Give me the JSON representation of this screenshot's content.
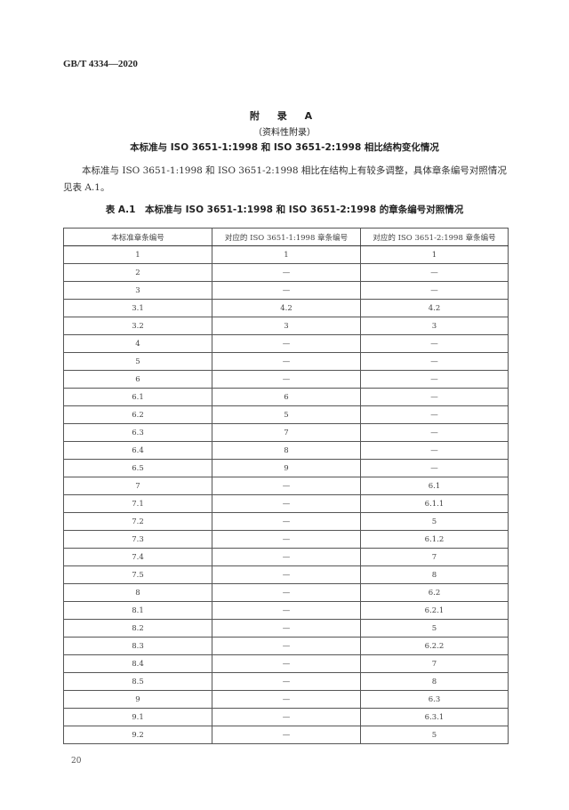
{
  "header": {
    "standard_number": "GB/T 4334—2020"
  },
  "appendix": {
    "title": "附 录 A",
    "subtitle": "（资料性附录）",
    "heading": "本标准与 ISO 3651-1:1998 和 ISO 3651-2:1998 相比结构变化情况"
  },
  "paragraph": "本标准与 ISO 3651-1:1998 和 ISO 3651-2:1998 相比在结构上有较多调整，具体章条编号对照情况见表 A.1。",
  "table": {
    "caption": "表 A.1　本标准与 ISO 3651-1:1998 和 ISO 3651-2:1998 的章条编号对照情况",
    "headers": [
      "本标准章条编号",
      "对应的 ISO 3651-1:1998 章条编号",
      "对应的 ISO 3651-2:1998 章条编号"
    ],
    "rows": [
      [
        "1",
        "1",
        "1"
      ],
      [
        "2",
        "—",
        "—"
      ],
      [
        "3",
        "—",
        "—"
      ],
      [
        "3.1",
        "4.2",
        "4.2"
      ],
      [
        "3.2",
        "3",
        "3"
      ],
      [
        "4",
        "—",
        "—"
      ],
      [
        "5",
        "—",
        "—"
      ],
      [
        "6",
        "—",
        "—"
      ],
      [
        "6.1",
        "6",
        "—"
      ],
      [
        "6.2",
        "5",
        "—"
      ],
      [
        "6.3",
        "7",
        "—"
      ],
      [
        "6.4",
        "8",
        "—"
      ],
      [
        "6.5",
        "9",
        "—"
      ],
      [
        "7",
        "—",
        "6.1"
      ],
      [
        "7.1",
        "—",
        "6.1.1"
      ],
      [
        "7.2",
        "—",
        "5"
      ],
      [
        "7.3",
        "—",
        "6.1.2"
      ],
      [
        "7.4",
        "—",
        "7"
      ],
      [
        "7.5",
        "—",
        "8"
      ],
      [
        "8",
        "—",
        "6.2"
      ],
      [
        "8.1",
        "—",
        "6.2.1"
      ],
      [
        "8.2",
        "—",
        "5"
      ],
      [
        "8.3",
        "—",
        "6.2.2"
      ],
      [
        "8.4",
        "—",
        "7"
      ],
      [
        "8.5",
        "—",
        "8"
      ],
      [
        "9",
        "—",
        "6.3"
      ],
      [
        "9.1",
        "—",
        "6.3.1"
      ],
      [
        "9.2",
        "—",
        "5"
      ]
    ]
  },
  "footer": {
    "page_number": "20"
  }
}
